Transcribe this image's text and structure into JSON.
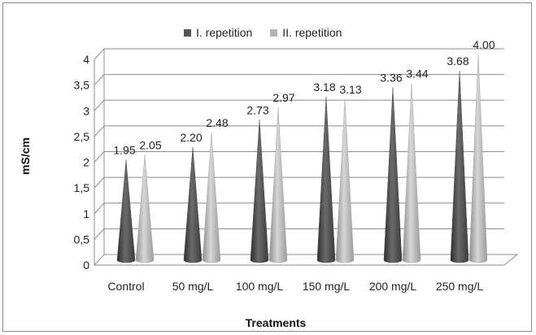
{
  "chart_data": {
    "type": "bar",
    "subtype": "3d-cone",
    "title": "",
    "xlabel": "Treatments",
    "ylabel": "mS/cm",
    "categories": [
      "Control",
      "50 mg/L",
      "100 mg/L",
      "150 mg/L",
      "200 mg/L",
      "250 mg/L"
    ],
    "series": [
      {
        "name": "I. repetition",
        "color": "#555555",
        "values": [
          1.95,
          2.2,
          2.73,
          3.18,
          3.36,
          3.68
        ],
        "labels": [
          "1.95",
          "2.20",
          "2.73",
          "3.18",
          "3.36",
          "3.68"
        ]
      },
      {
        "name": "II. repetition",
        "color": "#b3b3b3",
        "values": [
          2.05,
          2.48,
          2.97,
          3.13,
          3.44,
          4.0
        ],
        "labels": [
          "2.05",
          "2.48",
          "2.97",
          "3.13",
          "3.44",
          "4.00"
        ]
      }
    ],
    "ylim": [
      0,
      4
    ],
    "yticks": [
      "0",
      "0,5",
      "1",
      "1,5",
      "2",
      "2,5",
      "3",
      "3,5",
      "4"
    ],
    "grid": true,
    "legend_position": "top"
  }
}
